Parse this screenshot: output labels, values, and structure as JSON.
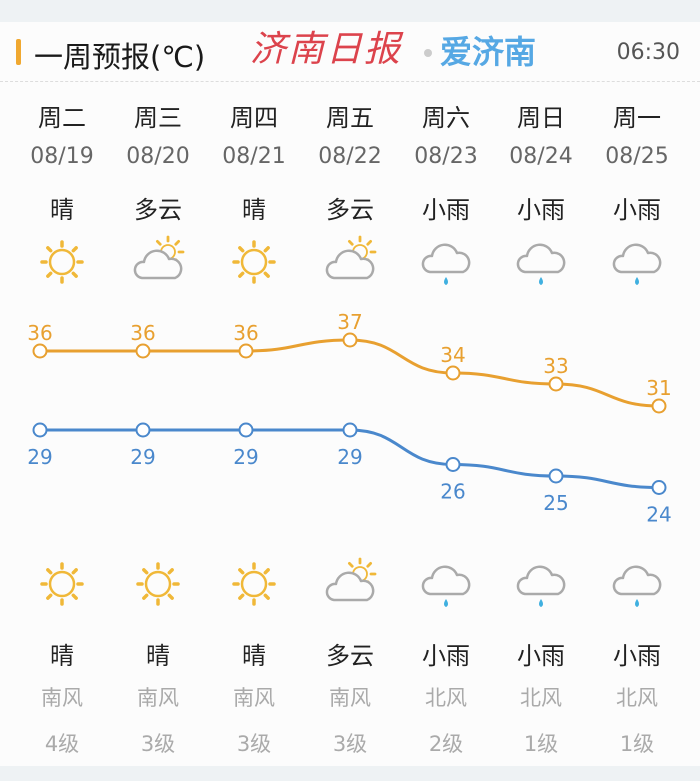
{
  "header": {
    "title": "一周预报(℃)",
    "time": "06:30",
    "accent": "#f0a830"
  },
  "days": [
    {
      "weekday": "周二",
      "date": "08/19",
      "day_weather": "晴",
      "day_icon": "sun-icon",
      "high": 36,
      "low": 29,
      "night_icon": "sun-icon",
      "night_weather": "晴",
      "wind_dir": "南风",
      "wind_level": "4级"
    },
    {
      "weekday": "周三",
      "date": "08/20",
      "day_weather": "多云",
      "day_icon": "partly-cloudy-icon",
      "high": 36,
      "low": 29,
      "night_icon": "sun-icon",
      "night_weather": "晴",
      "wind_dir": "南风",
      "wind_level": "3级"
    },
    {
      "weekday": "周四",
      "date": "08/21",
      "day_weather": "晴",
      "day_icon": "sun-icon",
      "high": 36,
      "low": 29,
      "night_icon": "sun-icon",
      "night_weather": "晴",
      "wind_dir": "南风",
      "wind_level": "3级"
    },
    {
      "weekday": "周五",
      "date": "08/22",
      "day_weather": "多云",
      "day_icon": "partly-cloudy-icon",
      "high": 37,
      "low": 29,
      "night_icon": "partly-cloudy-icon",
      "night_weather": "多云",
      "wind_dir": "南风",
      "wind_level": "3级"
    },
    {
      "weekday": "周六",
      "date": "08/23",
      "day_weather": "小雨",
      "day_icon": "light-rain-icon",
      "high": 34,
      "low": 26,
      "night_icon": "light-rain-icon",
      "night_weather": "小雨",
      "wind_dir": "北风",
      "wind_level": "2级"
    },
    {
      "weekday": "周日",
      "date": "08/24",
      "day_weather": "小雨",
      "day_icon": "light-rain-icon",
      "high": 33,
      "low": 25,
      "night_icon": "light-rain-icon",
      "night_weather": "小雨",
      "wind_dir": "北风",
      "wind_level": "1级"
    },
    {
      "weekday": "周一",
      "date": "08/25",
      "day_weather": "小雨",
      "day_icon": "light-rain-icon",
      "high": 31,
      "low": 24,
      "night_icon": "light-rain-icon",
      "night_weather": "小雨",
      "wind_dir": "北风",
      "wind_level": "1级"
    }
  ],
  "colors": {
    "high": "#e8a030",
    "low": "#4a88cc",
    "sun": "#f0b838",
    "cloud": "#aaaaaa",
    "rain": "#40b0e0"
  },
  "watermark": {
    "left": "济南日报",
    "right": "爱济南"
  }
}
